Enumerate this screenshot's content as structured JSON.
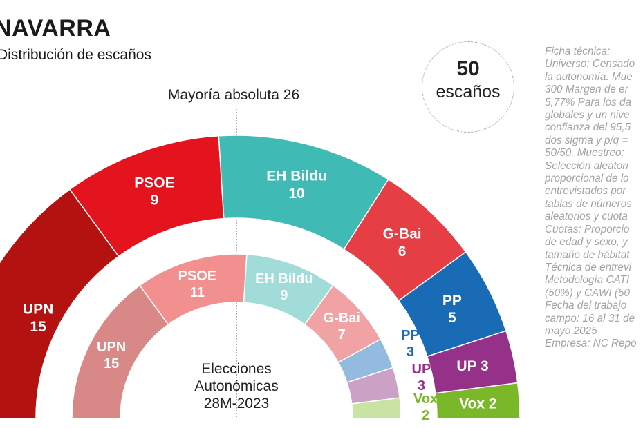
{
  "title": "NAVARRA",
  "subtitle": "Distribución de escaños",
  "total_seats": {
    "number": "50",
    "label": "escaños"
  },
  "majority_label": "Mayoría absoluta 26",
  "center_label": [
    "Elecciones",
    "Autonómicas",
    "28M-2023"
  ],
  "ficha_tecnica": "Ficha técnica:\nUniverso: Censado\nla autonomía. Mue\n300 Margen de er\n5,77% Para los da\nglobales y un nive\nconfianza del 95,5\ndos sigma y p/q =\n50/50. Muestreo:\nSelección aleatori\nproporcional de lo\nentrevistados por\ntablas de números\naleatorios y cuota\nCuotas: Proporcio\nde edad y sexo, y\ntamaño de hábitat\nTécnica de entrevi\nMetodología CATI\n(50%) y CAWI (50\nFecha del trabajo\ncampo: 16 al 31 de\nmayo 2025\nEmpresa: NC Repo",
  "chart_data": {
    "type": "parliament-donut",
    "total_seats": 50,
    "majority": 26,
    "series": [
      {
        "name": "Encuesta mayo 2025",
        "ring": "outer",
        "parties": [
          {
            "name": "UPN",
            "seats": 15,
            "label": "UPN\n15",
            "color": "#b31210",
            "label_inside": true
          },
          {
            "name": "PSOE",
            "seats": 9,
            "label": "PSOE\n9",
            "color": "#e3141e",
            "label_inside": true
          },
          {
            "name": "EH Bildu",
            "seats": 10,
            "label": "EH Bildu\n10",
            "color": "#40bab5",
            "label_inside": true
          },
          {
            "name": "G-Bai",
            "seats": 6,
            "label": "G-Bai\n6",
            "color": "#e63e45",
            "label_inside": true
          },
          {
            "name": "PP",
            "seats": 5,
            "label": "PP\n5",
            "color": "#1a6bb5",
            "label_inside": true
          },
          {
            "name": "UP",
            "seats": 3,
            "label": "UP 3",
            "color": "#96318a",
            "label_inside": true
          },
          {
            "name": "Vox",
            "seats": 2,
            "label": "Vox 2",
            "color": "#7ab829",
            "label_inside": true
          }
        ]
      },
      {
        "name": "Elecciones Autonómicas 28M-2023",
        "ring": "inner",
        "parties": [
          {
            "name": "UPN",
            "seats": 15,
            "label": "UPN\n15",
            "color": "#d88886",
            "label_inside": true
          },
          {
            "name": "PSOE",
            "seats": 11,
            "label": "PSOE\n11",
            "color": "#f2908f",
            "label_inside": true
          },
          {
            "name": "EH Bildu",
            "seats": 9,
            "label": "EH Bildu\n9",
            "color": "#a2dcd8",
            "label_inside": true
          },
          {
            "name": "G-Bai",
            "seats": 7,
            "label": "G-Bai\n7",
            "color": "#f1a2a5",
            "label_inside": true
          },
          {
            "name": "PP",
            "seats": 3,
            "label": "PP\n3",
            "color": "#93bbe0",
            "label_inside": false,
            "label_color": "#1a6bb5"
          },
          {
            "name": "UP",
            "seats": 3,
            "label": "UP\n3",
            "color": "#cca1c6",
            "label_inside": false,
            "label_color": "#96318a"
          },
          {
            "name": "Vox",
            "seats": 2,
            "label": "Vox\n2",
            "color": "#c9e3a5",
            "label_inside": false,
            "label_color": "#7ab829"
          }
        ]
      }
    ]
  }
}
